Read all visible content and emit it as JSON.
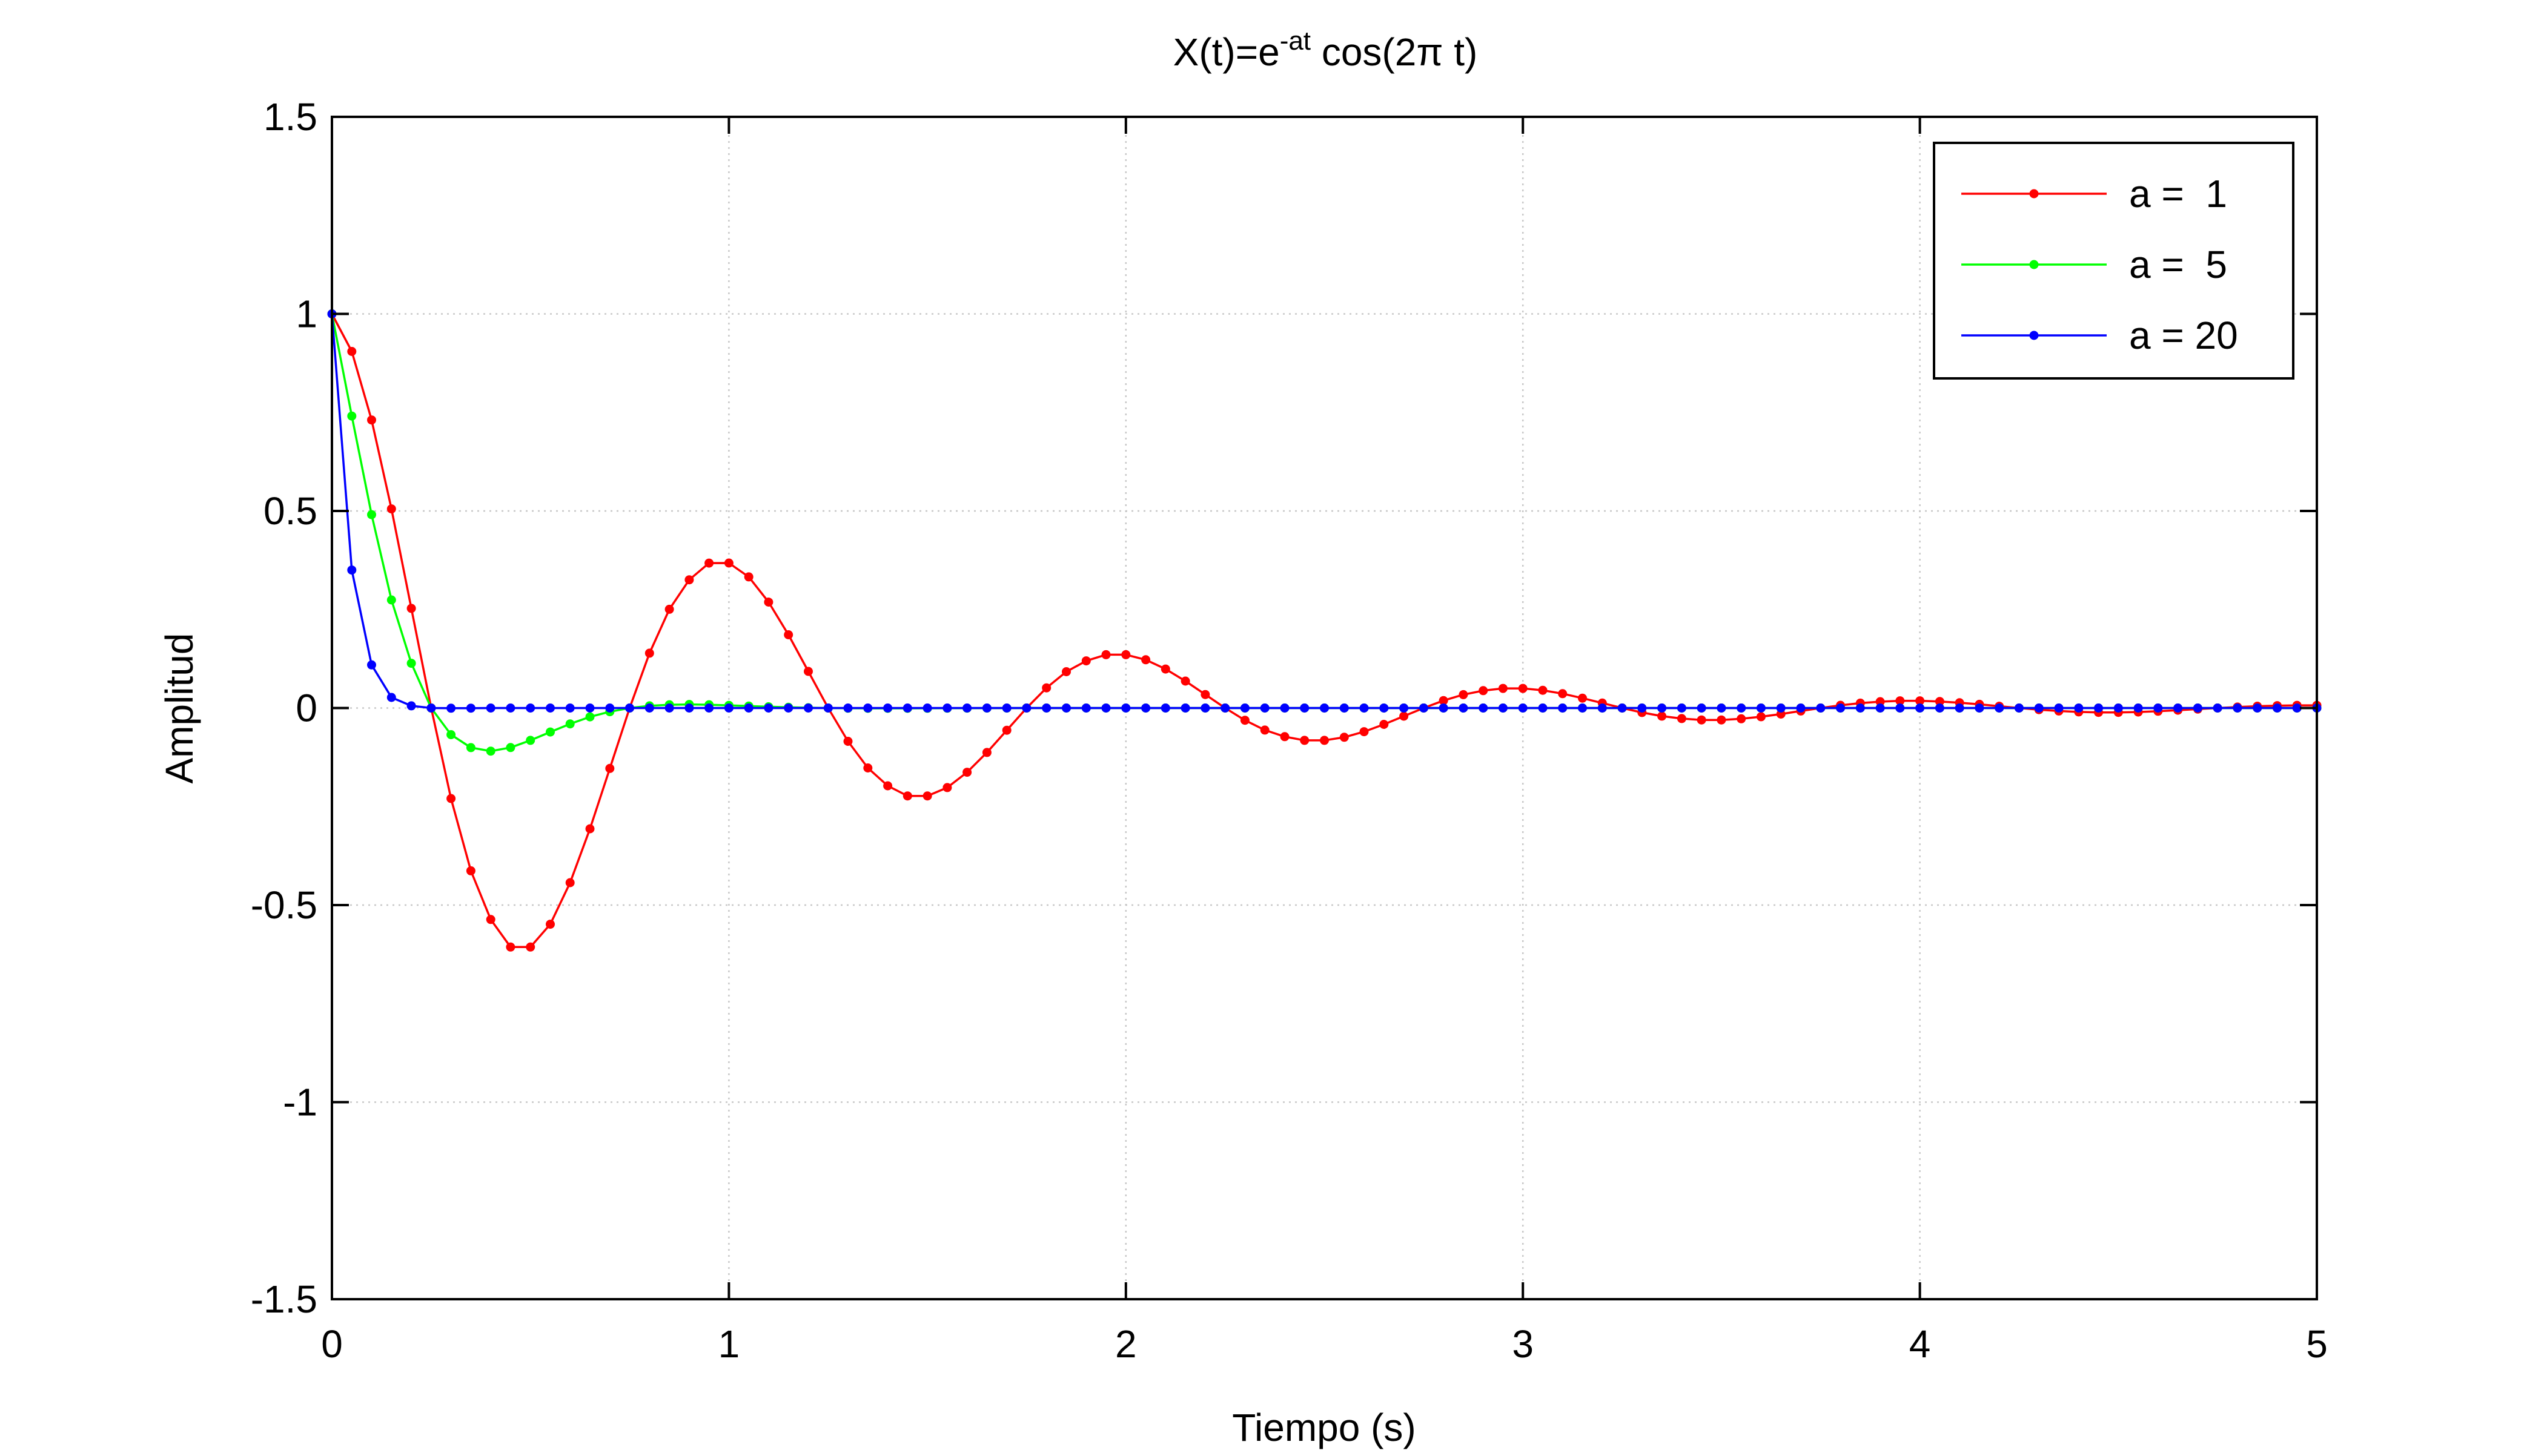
{
  "chart_data": {
    "type": "line",
    "title": {
      "prefix": "X(t)=e",
      "superscript": "-at",
      "suffix": " cos(2π t)"
    },
    "xlabel": "Tiempo (s)",
    "ylabel": "Amplitud",
    "xlim": [
      0,
      5
    ],
    "ylim": [
      -1.5,
      1.5
    ],
    "x_ticks": [
      0,
      1,
      2,
      3,
      4,
      5
    ],
    "x_tick_labels": [
      "0",
      "1",
      "2",
      "3",
      "4",
      "5"
    ],
    "y_ticks": [
      -1.5,
      -1,
      -0.5,
      0,
      0.5,
      1,
      1.5
    ],
    "y_tick_labels": [
      "-1.5",
      "-1",
      "-0.5",
      "0",
      "0.5",
      "1",
      "1.5"
    ],
    "grid": true,
    "legend_position": "top-right",
    "x": [
      0.0,
      0.05,
      0.1,
      0.15,
      0.2,
      0.25,
      0.3,
      0.35,
      0.4,
      0.45,
      0.5,
      0.55,
      0.6,
      0.65,
      0.7,
      0.75,
      0.8,
      0.85,
      0.9,
      0.95,
      1.0,
      1.05,
      1.1,
      1.15,
      1.2,
      1.25,
      1.3,
      1.35,
      1.4,
      1.45,
      1.5,
      1.55,
      1.6,
      1.65,
      1.7,
      1.75,
      1.8,
      1.85,
      1.9,
      1.95,
      2.0,
      2.05,
      2.1,
      2.15,
      2.2,
      2.25,
      2.3,
      2.35,
      2.4,
      2.45,
      2.5,
      2.55,
      2.6,
      2.65,
      2.7,
      2.75,
      2.8,
      2.85,
      2.9,
      2.95,
      3.0,
      3.05,
      3.1,
      3.15,
      3.2,
      3.25,
      3.3,
      3.35,
      3.4,
      3.45,
      3.5,
      3.55,
      3.6,
      3.65,
      3.7,
      3.75,
      3.8,
      3.85,
      3.9,
      3.95,
      4.0,
      4.05,
      4.1,
      4.15,
      4.2,
      4.25,
      4.3,
      4.35,
      4.4,
      4.45,
      4.5,
      4.55,
      4.6,
      4.65,
      4.7,
      4.75,
      4.8,
      4.85,
      4.9,
      4.95,
      5.0
    ],
    "series": [
      {
        "name": "a =  1",
        "color": "#ff0000",
        "values": [
          1.0,
          0.9048,
          0.7308,
          0.5052,
          0.2528,
          0.0,
          -0.2296,
          -0.4131,
          -0.5365,
          -0.6064,
          -0.6065,
          -0.5486,
          -0.4431,
          -0.3064,
          -0.1533,
          0.0,
          0.1392,
          0.2505,
          0.3254,
          0.3678,
          0.3679,
          0.3327,
          0.2688,
          0.1858,
          0.093,
          0.0,
          -0.0845,
          -0.152,
          -0.1974,
          -0.2231,
          -0.2231,
          -0.2018,
          -0.163,
          -0.1127,
          -0.0564,
          0.0,
          0.0512,
          0.0922,
          0.1197,
          0.1353,
          0.1353,
          0.1224,
          0.0989,
          0.0683,
          0.0342,
          0.0,
          -0.0311,
          -0.0559,
          -0.0726,
          -0.0821,
          -0.0821,
          -0.0742,
          -0.06,
          -0.0415,
          -0.0207,
          0.0,
          0.0189,
          0.0339,
          0.0441,
          0.0498,
          0.0498,
          0.045,
          0.0364,
          0.0251,
          0.0126,
          0.0,
          -0.0114,
          -0.0206,
          -0.0267,
          -0.0302,
          -0.0302,
          -0.0273,
          -0.0221,
          -0.0153,
          -0.0076,
          0.0,
          0.0069,
          0.0125,
          0.0162,
          0.0183,
          0.0183,
          0.0166,
          0.0134,
          0.0093,
          0.0046,
          0.0,
          -0.0042,
          -0.0076,
          -0.0098,
          -0.0111,
          -0.0111,
          -0.0101,
          -0.0081,
          -0.0056,
          -0.0028,
          0.0,
          0.0025,
          0.0046,
          0.006,
          0.0067,
          0.0067
        ]
      },
      {
        "name": "a =  5",
        "color": "#00ff00",
        "values": [
          1.0,
          0.7408,
          0.4906,
          0.2742,
          0.1135,
          0.0,
          -0.0676,
          -0.1005,
          -0.1093,
          -0.1003,
          -0.0821,
          -0.0609,
          -0.0403,
          -0.0225,
          -0.0093,
          0.0,
          0.0056,
          0.0083,
          0.009,
          0.0083,
          0.0067,
          0.005,
          0.0033,
          0.0019,
          0.0008,
          0.0,
          -0.0005,
          -0.0007,
          -0.0007,
          -0.0007,
          -0.0006,
          -0.0004,
          -0.0003,
          -0.0002,
          -0.0001,
          0,
          0,
          0,
          0,
          0,
          0,
          0,
          0,
          0,
          0,
          0,
          0,
          0,
          0,
          0,
          0,
          0,
          0,
          0,
          0,
          0,
          0,
          0,
          0,
          0,
          0,
          0,
          0,
          0,
          0,
          0,
          0,
          0,
          0,
          0,
          0,
          0,
          0,
          0,
          0,
          0,
          0,
          0,
          0,
          0,
          0,
          0,
          0,
          0,
          0,
          0,
          0,
          0,
          0,
          0,
          0,
          0,
          0,
          0,
          0,
          0,
          0,
          0,
          0,
          0,
          0
        ]
      },
      {
        "name": "a = 20",
        "color": "#0000ff",
        "values": [
          1.0,
          0.35,
          0.1094,
          0.0269,
          0.0056,
          0.0,
          -0.0005,
          -0.0003,
          0,
          0,
          0,
          0,
          0,
          0,
          0,
          0,
          0,
          0,
          0,
          0,
          0,
          0,
          0,
          0,
          0,
          0,
          0,
          0,
          0,
          0,
          0,
          0,
          0,
          0,
          0,
          0,
          0,
          0,
          0,
          0,
          0,
          0,
          0,
          0,
          0,
          0,
          0,
          0,
          0,
          0,
          0,
          0,
          0,
          0,
          0,
          0,
          0,
          0,
          0,
          0,
          0,
          0,
          0,
          0,
          0,
          0,
          0,
          0,
          0,
          0,
          0,
          0,
          0,
          0,
          0,
          0,
          0,
          0,
          0,
          0,
          0,
          0,
          0,
          0,
          0,
          0,
          0,
          0,
          0,
          0,
          0,
          0,
          0,
          0,
          0,
          0,
          0,
          0,
          0,
          0,
          0
        ]
      }
    ]
  }
}
